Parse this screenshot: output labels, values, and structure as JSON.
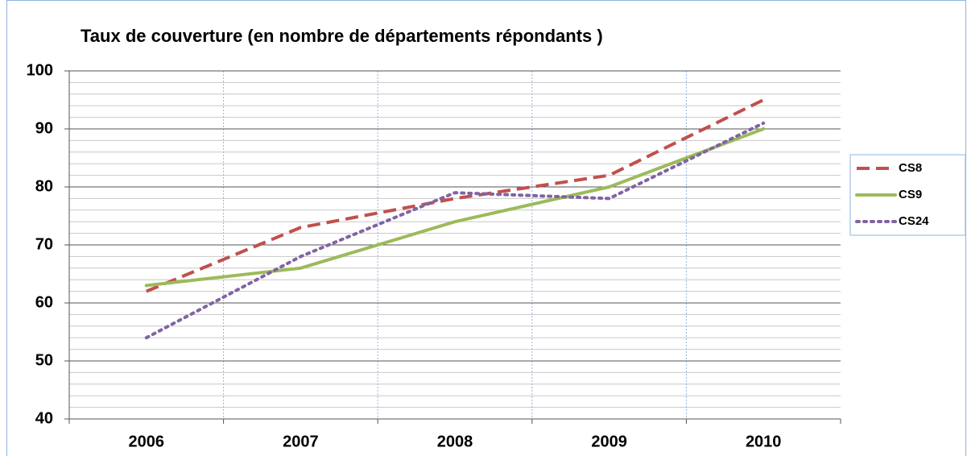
{
  "chart_data": {
    "type": "line",
    "title": "Taux de couverture (en nombre de départements répondants )",
    "categories": [
      "2006",
      "2007",
      "2008",
      "2009",
      "2010"
    ],
    "series": [
      {
        "name": "CS8",
        "color": "#c0504d",
        "dash": "dashed",
        "values": [
          62,
          73,
          78,
          82,
          95
        ]
      },
      {
        "name": "CS9",
        "color": "#9bbb59",
        "dash": "solid",
        "values": [
          63,
          66,
          74,
          80,
          90
        ]
      },
      {
        "name": "CS24",
        "color": "#8064a2",
        "dash": "dotted",
        "values": [
          54,
          68,
          79,
          78,
          91
        ]
      }
    ],
    "ylim": [
      40,
      100
    ],
    "yticks": [
      40,
      50,
      60,
      70,
      80,
      90,
      100
    ],
    "grid": true,
    "minor_grid": true,
    "legend": "right"
  }
}
